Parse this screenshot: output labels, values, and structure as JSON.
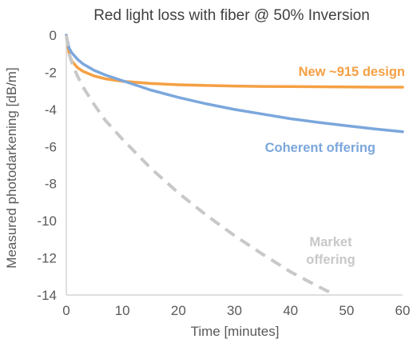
{
  "chart_data": {
    "type": "line",
    "title": "Red light loss with fiber @ 50% Inversion",
    "xlabel": "Time [minutes]",
    "ylabel": "Measured photodarkening [dB/m]",
    "xlim": [
      0,
      60
    ],
    "ylim": [
      -14,
      0
    ],
    "x_ticks": [
      "0",
      "10",
      "20",
      "30",
      "40",
      "50",
      "60"
    ],
    "y_ticks": [
      "0",
      "-2",
      "-4",
      "-6",
      "-8",
      "-10",
      "-12",
      "-14"
    ],
    "grid": false,
    "legend": "none",
    "series": [
      {
        "name": "New ~915 design",
        "color": "#F5A044",
        "style": "solid",
        "label_lines": [
          "New ~915 design"
        ],
        "x": [
          0,
          0.5,
          1,
          2,
          3,
          5,
          7,
          10,
          15,
          20,
          25,
          30,
          35,
          40,
          45,
          50,
          55,
          60
        ],
        "y": [
          0,
          -1.0,
          -1.4,
          -1.75,
          -1.95,
          -2.2,
          -2.35,
          -2.48,
          -2.6,
          -2.67,
          -2.71,
          -2.74,
          -2.76,
          -2.77,
          -2.78,
          -2.79,
          -2.8,
          -2.8
        ]
      },
      {
        "name": "Coherent offering",
        "color": "#7BA7DC",
        "style": "solid",
        "label_lines": [
          "Coherent offering"
        ],
        "x": [
          0,
          0.5,
          1,
          2,
          3,
          5,
          7,
          10,
          15,
          20,
          25,
          30,
          35,
          40,
          45,
          50,
          55,
          60
        ],
        "y": [
          0,
          -0.7,
          -0.95,
          -1.3,
          -1.55,
          -1.9,
          -2.15,
          -2.45,
          -2.95,
          -3.35,
          -3.7,
          -4.0,
          -4.25,
          -4.5,
          -4.7,
          -4.88,
          -5.05,
          -5.2
        ]
      },
      {
        "name": "Market offering",
        "color": "#C8C8C8",
        "style": "dashed",
        "label_lines": [
          "Market",
          "offering"
        ],
        "x": [
          0,
          0.5,
          1,
          2,
          3,
          5,
          7,
          10,
          15,
          20,
          25,
          30,
          35,
          40,
          45,
          48
        ],
        "y": [
          0,
          -1.0,
          -1.5,
          -2.2,
          -2.8,
          -3.75,
          -4.6,
          -5.6,
          -7.15,
          -8.5,
          -9.7,
          -10.8,
          -11.8,
          -12.75,
          -13.55,
          -14.0
        ]
      }
    ]
  }
}
